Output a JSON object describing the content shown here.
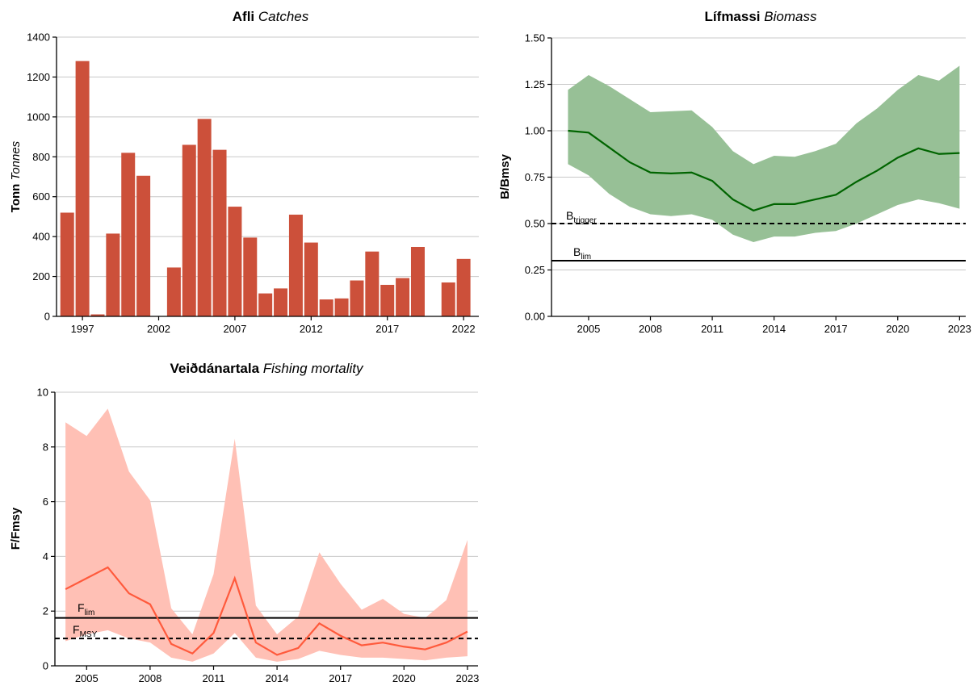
{
  "colors": {
    "catch_bar": "#CC503A",
    "biomass_band": "#97C096",
    "biomass_line": "#006400",
    "fishing_band": "#FFC0B5",
    "fishing_line": "#FF5A3C",
    "gridline": "#C8C8C8",
    "ref_line": "#000000"
  },
  "panels": {
    "catches": {
      "title_bold": "Afli",
      "title_italic": "Catches",
      "ylabel_bold": "Tonn",
      "ylabel_italic": "Tonnes"
    },
    "biomass": {
      "title_bold": "Lífmassi",
      "title_italic": "Biomass",
      "ylabel": "B/Bmsy",
      "ref_trigger_main": "B",
      "ref_trigger_sub": "trigger",
      "ref_lim_main": "B",
      "ref_lim_sub": "lim"
    },
    "fishing": {
      "title_bold": "Veiðdánartala",
      "title_italic": "Fishing mortality",
      "ylabel": "F/Fmsy",
      "ref_lim_main": "F",
      "ref_lim_sub": "lim",
      "ref_msy_main": "F",
      "ref_msy_sub": "MSY"
    }
  },
  "chart_data": [
    {
      "id": "catches",
      "type": "bar",
      "x": [
        1996,
        1997,
        1998,
        1999,
        2000,
        2001,
        2002,
        2003,
        2004,
        2005,
        2006,
        2007,
        2008,
        2009,
        2010,
        2011,
        2012,
        2013,
        2014,
        2015,
        2016,
        2017,
        2018,
        2019,
        2020,
        2021,
        2022
      ],
      "values": [
        520,
        1280,
        10,
        415,
        820,
        705,
        0,
        245,
        860,
        990,
        835,
        550,
        395,
        115,
        140,
        510,
        370,
        85,
        90,
        180,
        325,
        158,
        192,
        348,
        0,
        170,
        288
      ],
      "xticks": [
        1997,
        2002,
        2007,
        2012,
        2017,
        2022
      ],
      "yticks": [
        0,
        200,
        400,
        600,
        800,
        1000,
        1200,
        1400
      ],
      "ylim": [
        0,
        1400
      ],
      "grid": true
    },
    {
      "id": "biomass",
      "type": "area",
      "x": [
        2004,
        2005,
        2006,
        2007,
        2008,
        2009,
        2010,
        2011,
        2012,
        2013,
        2014,
        2015,
        2016,
        2017,
        2018,
        2019,
        2020,
        2021,
        2022,
        2023
      ],
      "series": [
        {
          "role": "median",
          "values": [
            1.0,
            0.99,
            0.91,
            0.83,
            0.775,
            0.77,
            0.775,
            0.73,
            0.63,
            0.57,
            0.605,
            0.605,
            0.63,
            0.655,
            0.725,
            0.785,
            0.855,
            0.905,
            0.875,
            0.88
          ]
        },
        {
          "role": "lower",
          "values": [
            0.82,
            0.76,
            0.66,
            0.59,
            0.55,
            0.54,
            0.55,
            0.52,
            0.44,
            0.4,
            0.43,
            0.43,
            0.45,
            0.46,
            0.5,
            0.55,
            0.6,
            0.63,
            0.61,
            0.58
          ]
        },
        {
          "role": "upper",
          "values": [
            1.22,
            1.3,
            1.24,
            1.17,
            1.1,
            1.105,
            1.11,
            1.02,
            0.89,
            0.82,
            0.865,
            0.86,
            0.89,
            0.93,
            1.04,
            1.12,
            1.22,
            1.3,
            1.27,
            1.35
          ]
        }
      ],
      "reference_lines": [
        {
          "name": "Btrigger",
          "value": 0.5,
          "style": "dashed"
        },
        {
          "name": "Blim",
          "value": 0.3,
          "style": "solid"
        }
      ],
      "xticks": [
        2005,
        2008,
        2011,
        2014,
        2017,
        2020,
        2023
      ],
      "yticks": [
        "0.00",
        "0.25",
        "0.50",
        "0.75",
        "1.00",
        "1.25",
        "1.50"
      ],
      "ylim": [
        0,
        1.5
      ],
      "grid": true
    },
    {
      "id": "fishing",
      "type": "area",
      "x": [
        2004,
        2005,
        2006,
        2007,
        2008,
        2009,
        2010,
        2011,
        2012,
        2013,
        2014,
        2015,
        2016,
        2017,
        2018,
        2019,
        2020,
        2021,
        2022,
        2023
      ],
      "series": [
        {
          "role": "median",
          "values": [
            2.8,
            3.2,
            3.6,
            2.65,
            2.25,
            0.8,
            0.45,
            1.2,
            3.2,
            0.85,
            0.4,
            0.65,
            1.55,
            1.1,
            0.75,
            0.85,
            0.7,
            0.6,
            0.85,
            1.25
          ]
        },
        {
          "role": "lower",
          "values": [
            0.9,
            1.15,
            1.3,
            1.0,
            0.85,
            0.3,
            0.15,
            0.45,
            1.2,
            0.3,
            0.15,
            0.25,
            0.55,
            0.4,
            0.3,
            0.3,
            0.25,
            0.2,
            0.3,
            0.35
          ]
        },
        {
          "role": "upper",
          "values": [
            8.9,
            8.4,
            9.4,
            7.1,
            6.05,
            2.1,
            1.15,
            3.35,
            8.3,
            2.2,
            1.15,
            1.8,
            4.15,
            3.0,
            2.05,
            2.45,
            1.9,
            1.75,
            2.4,
            4.6
          ]
        }
      ],
      "reference_lines": [
        {
          "name": "Flim",
          "value": 1.75,
          "style": "solid"
        },
        {
          "name": "FMSY",
          "value": 1.0,
          "style": "dashed"
        }
      ],
      "xticks": [
        2005,
        2008,
        2011,
        2014,
        2017,
        2020,
        2023
      ],
      "yticks": [
        0,
        2,
        4,
        6,
        8,
        10
      ],
      "ylim": [
        0,
        10
      ],
      "grid": true
    }
  ]
}
